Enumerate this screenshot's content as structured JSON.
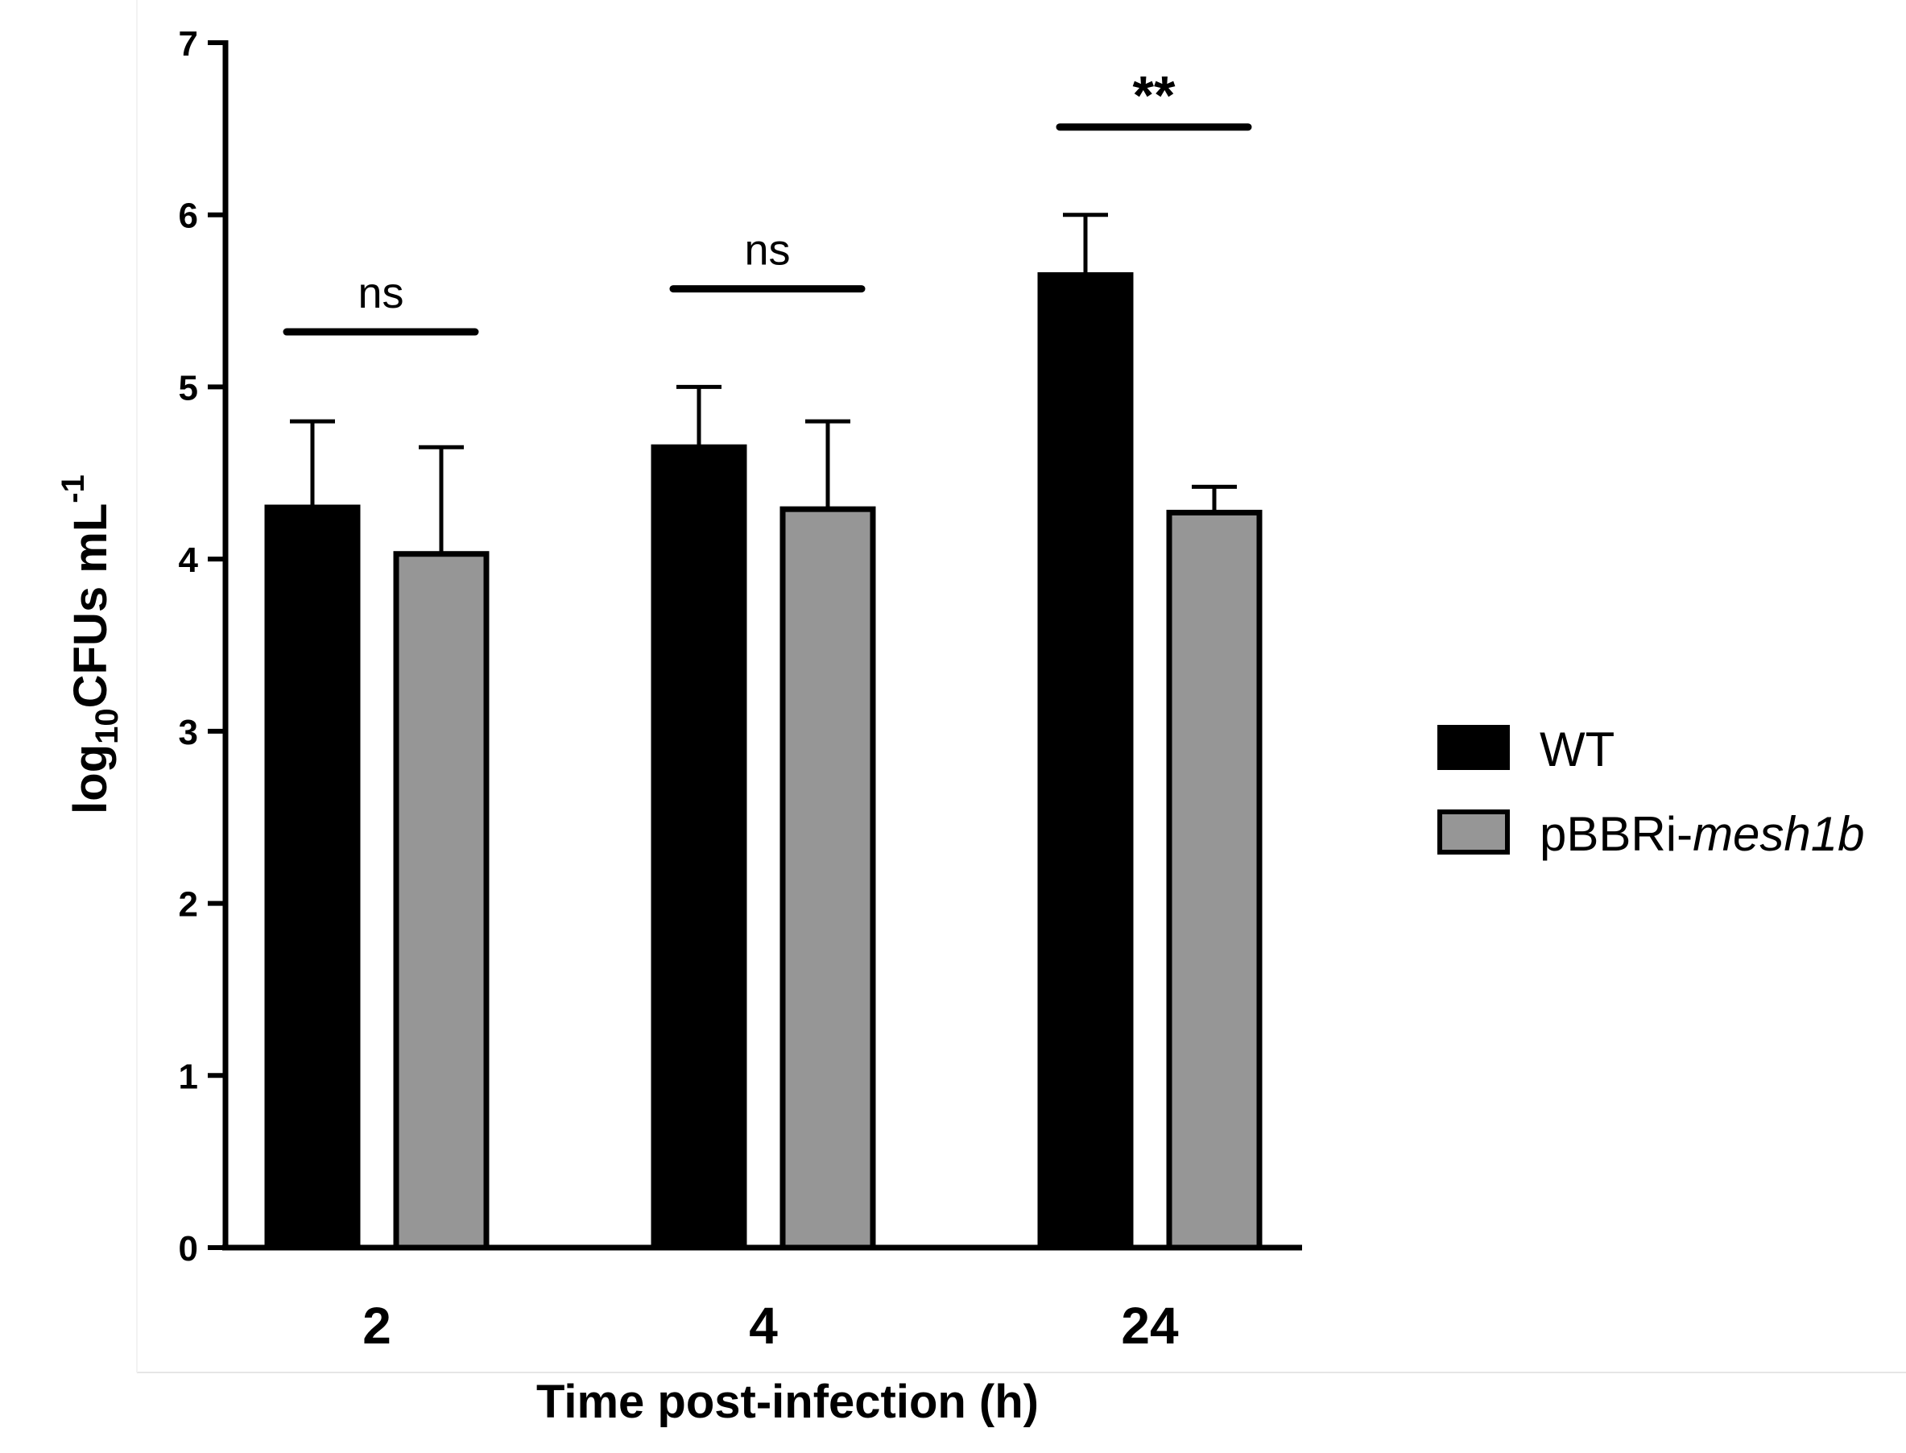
{
  "chart_data": {
    "type": "bar",
    "title": "",
    "xlabel": "Time post-infection (h)",
    "ylabel": {
      "prefix": "log",
      "sub": "10",
      "main": "CFUs mL",
      "sup": "-1"
    },
    "ylim": [
      0,
      7
    ],
    "yticks": [
      "0",
      "1",
      "2",
      "3",
      "4",
      "5",
      "6",
      "7"
    ],
    "categories": [
      "2",
      "4",
      "24"
    ],
    "series": [
      {
        "name": "WT",
        "color": "#000000",
        "values": [
          4.3,
          4.65,
          5.65
        ],
        "errors": [
          0.5,
          0.35,
          0.35
        ]
      },
      {
        "name": "pBBRi-mesh1b",
        "name_plain": "pBBRi-",
        "name_italic": "mesh1b",
        "color": "#969696",
        "values": [
          4.03,
          4.29,
          4.27
        ],
        "errors": [
          0.62,
          0.51,
          0.15
        ]
      }
    ],
    "significance": [
      {
        "category": "2",
        "label": "ns",
        "level": 5.32
      },
      {
        "category": "4",
        "label": "ns",
        "level": 5.57
      },
      {
        "category": "24",
        "label": "**",
        "level": 6.51
      }
    ],
    "legend_position": "right"
  }
}
